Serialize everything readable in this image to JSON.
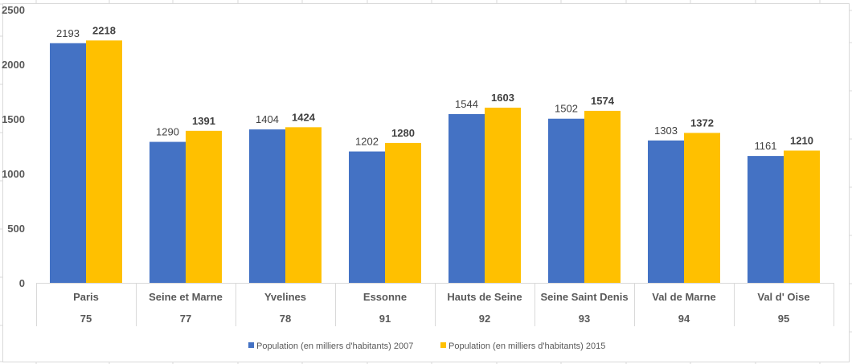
{
  "chart_data": {
    "type": "bar",
    "title": "",
    "xlabel": "",
    "ylabel": "",
    "ylim": [
      0,
      2500
    ],
    "yticks": [
      "0",
      "500",
      "1000",
      "1500",
      "2000",
      "2500"
    ],
    "grid": false,
    "legend_position": "bottom",
    "categories": [
      "Paris",
      "Seine et Marne",
      "Yvelines",
      "Essonne",
      "Hauts de Seine",
      "Seine Saint Denis",
      "Val de Marne",
      "Val d' Oise"
    ],
    "category_codes": [
      "75",
      "77",
      "78",
      "91",
      "92",
      "93",
      "94",
      "95"
    ],
    "series": [
      {
        "name": "Population (en milliers d'habitants) 2007",
        "color": "#4472C4",
        "values": [
          2193,
          1290,
          1404,
          1202,
          1544,
          1502,
          1303,
          1161
        ],
        "labels": [
          "2193",
          "1290",
          "1404",
          "1202",
          "1544",
          "1502",
          "1303",
          "1161"
        ]
      },
      {
        "name": "Population (en milliers d'habitants) 2015",
        "color": "#FFC000",
        "values": [
          2218,
          1391,
          1424,
          1280,
          1603,
          1574,
          1372,
          1210
        ],
        "labels": [
          "2218",
          "1391",
          "1424",
          "1280",
          "1603",
          "1574",
          "1372",
          "1210"
        ]
      }
    ]
  }
}
